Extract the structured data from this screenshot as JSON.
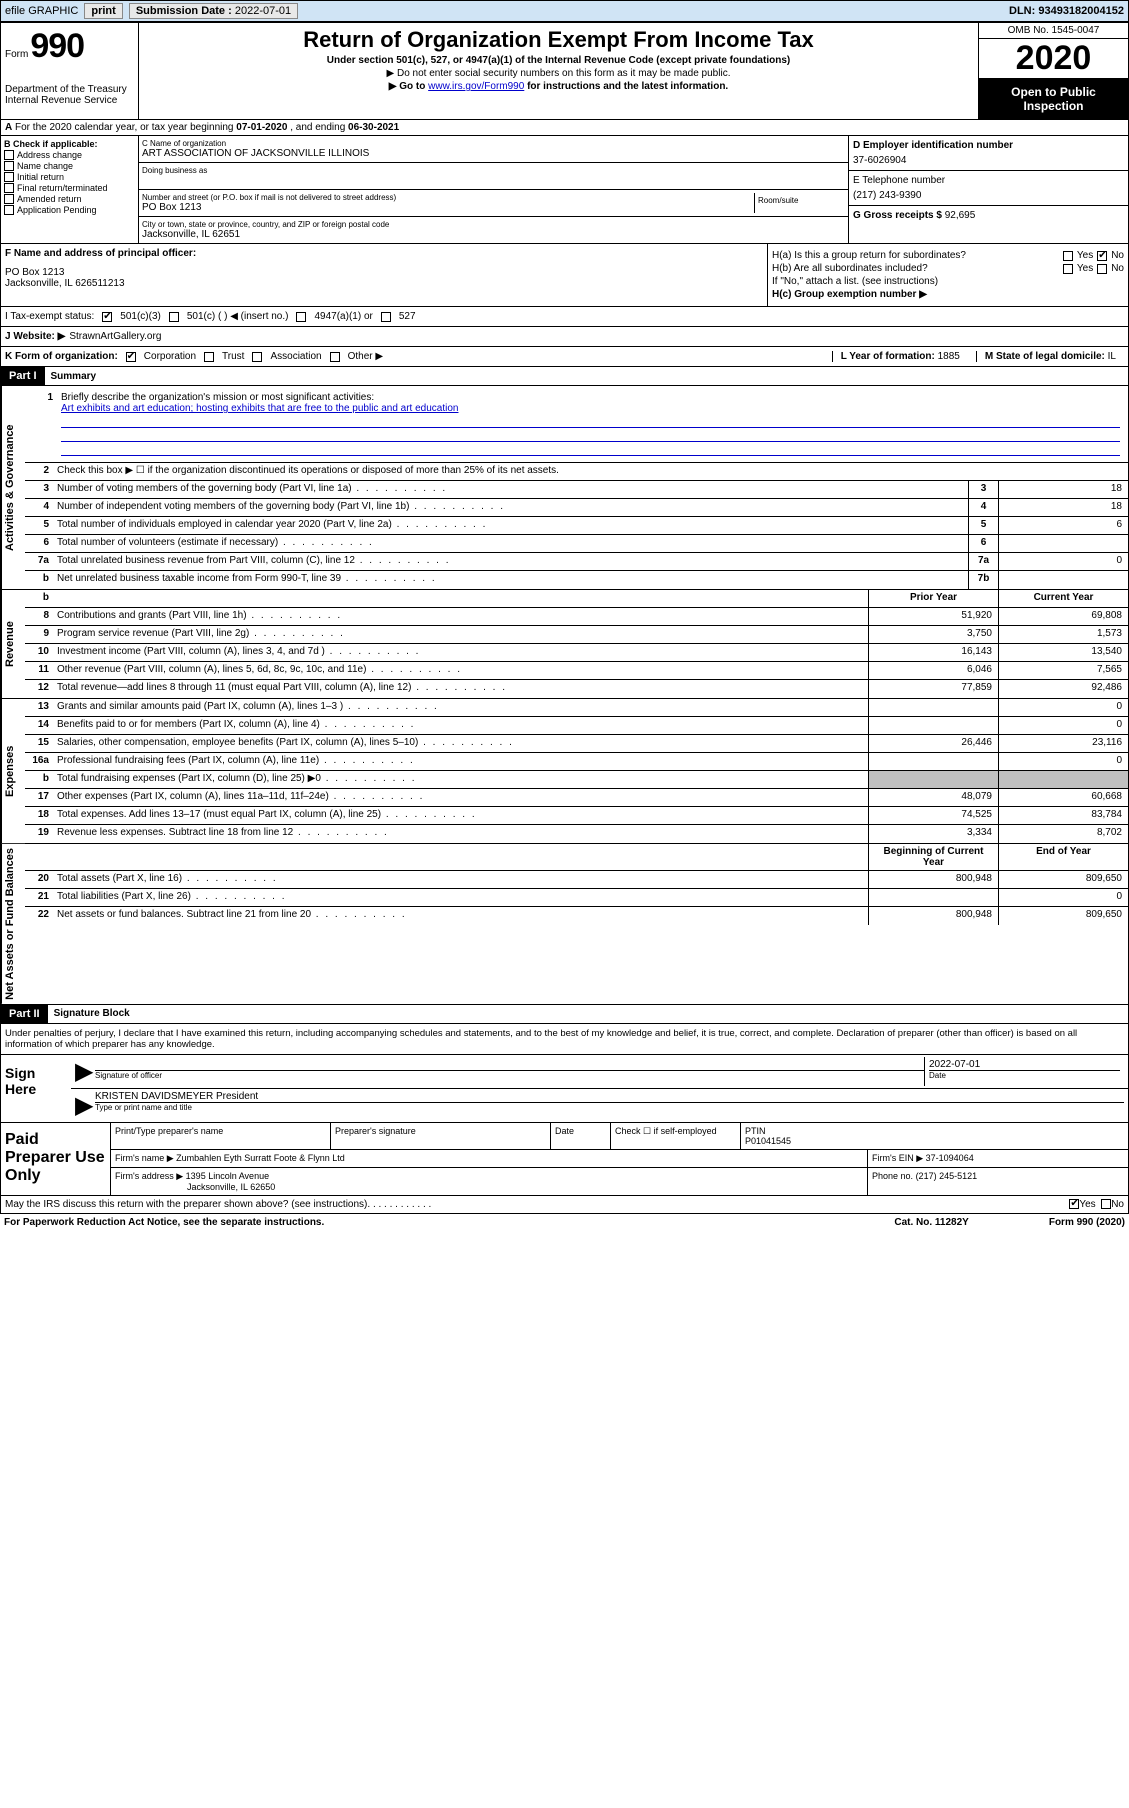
{
  "topbar": {
    "efile": "efile GRAPHIC",
    "print": "print",
    "subdate_label": "Submission Date :",
    "subdate": "2022-07-01",
    "dln": "DLN: 93493182004152"
  },
  "header": {
    "form_word": "Form",
    "form_num": "990",
    "dept": "Department of the Treasury",
    "irs": "Internal Revenue Service",
    "title": "Return of Organization Exempt From Income Tax",
    "sub1": "Under section 501(c), 527, or 4947(a)(1) of the Internal Revenue Code (except private foundations)",
    "sub2": "▶ Do not enter social security numbers on this form as it may be made public.",
    "sub3a": "▶ Go to ",
    "sub3link": "www.irs.gov/Form990",
    "sub3b": " for instructions and the latest information.",
    "omb": "OMB No. 1545-0047",
    "year": "2020",
    "open": "Open to Public Inspection"
  },
  "row_a": {
    "prefix": "A",
    "text": "For the 2020 calendar year, or tax year beginning ",
    "begin": "07-01-2020",
    "mid": " , and ending ",
    "end": "06-30-2021"
  },
  "col_b": {
    "header": "B Check if applicable:",
    "items": [
      "Address change",
      "Name change",
      "Initial return",
      "Final return/terminated",
      "Amended return",
      "Application Pending"
    ]
  },
  "col_c": {
    "name_label": "C Name of organization",
    "name": "ART ASSOCIATION OF JACKSONVILLE ILLINOIS",
    "dba_label": "Doing business as",
    "addr_label": "Number and street (or P.O. box if mail is not delivered to street address)",
    "addr": "PO Box 1213",
    "room_label": "Room/suite",
    "city_label": "City or town, state or province, country, and ZIP or foreign postal code",
    "city": "Jacksonville, IL  62651"
  },
  "col_de": {
    "d_label": "D Employer identification number",
    "d_val": "37-6026904",
    "e_label": "E Telephone number",
    "e_val": "(217) 243-9390",
    "g_label": "G Gross receipts $",
    "g_val": "92,695"
  },
  "row_f": {
    "label": "F  Name and address of principal officer:",
    "line1": "PO Box 1213",
    "line2": "Jacksonville, IL  626511213"
  },
  "row_h": {
    "ha": "H(a)  Is this a group return for subordinates?",
    "hb": "H(b)  Are all subordinates included?",
    "hb_note": "If \"No,\" attach a list. (see instructions)",
    "hc": "H(c)  Group exemption number ▶",
    "yes": "Yes",
    "no": "No"
  },
  "row_i": {
    "label": "I  Tax-exempt status:",
    "c3": "501(c)(3)",
    "c": "501(c) (  ) ◀ (insert no.)",
    "a1": "4947(a)(1) or",
    "s527": "527"
  },
  "row_j": {
    "label": "J  Website: ▶",
    "val": "StrawnArtGallery.org"
  },
  "row_k": {
    "label": "K Form of organization:",
    "corp": "Corporation",
    "trust": "Trust",
    "assoc": "Association",
    "other": "Other ▶",
    "l_label": "L Year of formation:",
    "l_val": "1885",
    "m_label": "M State of legal domicile:",
    "m_val": "IL"
  },
  "parts": {
    "p1": "Part I",
    "p1_title": "Summary",
    "p2": "Part II",
    "p2_title": "Signature Block"
  },
  "summary": {
    "line1_label": "Briefly describe the organization's mission or most significant activities:",
    "line1_text": "Art exhibits and art education; hosting exhibits that are free to the public and art education",
    "line2": "Check this box ▶ ☐  if the organization discontinued its operations or disposed of more than 25% of its net assets.",
    "rows": [
      {
        "n": "3",
        "t": "Number of voting members of the governing body (Part VI, line 1a)",
        "box": "3",
        "v": "18"
      },
      {
        "n": "4",
        "t": "Number of independent voting members of the governing body (Part VI, line 1b)",
        "box": "4",
        "v": "18"
      },
      {
        "n": "5",
        "t": "Total number of individuals employed in calendar year 2020 (Part V, line 2a)",
        "box": "5",
        "v": "6"
      },
      {
        "n": "6",
        "t": "Total number of volunteers (estimate if necessary)",
        "box": "6",
        "v": ""
      },
      {
        "n": "7a",
        "t": "Total unrelated business revenue from Part VIII, column (C), line 12",
        "box": "7a",
        "v": "0"
      },
      {
        "n": "b",
        "t": "Net unrelated business taxable income from Form 990-T, line 39",
        "box": "7b",
        "v": ""
      }
    ],
    "col_hdr_prior": "Prior Year",
    "col_hdr_current": "Current Year",
    "revenue": [
      {
        "n": "8",
        "t": "Contributions and grants (Part VIII, line 1h)",
        "p": "51,920",
        "c": "69,808"
      },
      {
        "n": "9",
        "t": "Program service revenue (Part VIII, line 2g)",
        "p": "3,750",
        "c": "1,573"
      },
      {
        "n": "10",
        "t": "Investment income (Part VIII, column (A), lines 3, 4, and 7d )",
        "p": "16,143",
        "c": "13,540"
      },
      {
        "n": "11",
        "t": "Other revenue (Part VIII, column (A), lines 5, 6d, 8c, 9c, 10c, and 11e)",
        "p": "6,046",
        "c": "7,565"
      },
      {
        "n": "12",
        "t": "Total revenue—add lines 8 through 11 (must equal Part VIII, column (A), line 12)",
        "p": "77,859",
        "c": "92,486"
      }
    ],
    "expenses": [
      {
        "n": "13",
        "t": "Grants and similar amounts paid (Part IX, column (A), lines 1–3 )",
        "p": "",
        "c": "0"
      },
      {
        "n": "14",
        "t": "Benefits paid to or for members (Part IX, column (A), line 4)",
        "p": "",
        "c": "0"
      },
      {
        "n": "15",
        "t": "Salaries, other compensation, employee benefits (Part IX, column (A), lines 5–10)",
        "p": "26,446",
        "c": "23,116"
      },
      {
        "n": "16a",
        "t": "Professional fundraising fees (Part IX, column (A), line 11e)",
        "p": "",
        "c": "0"
      },
      {
        "n": "b",
        "t": "Total fundraising expenses (Part IX, column (D), line 25) ▶0",
        "p": "SHADE",
        "c": "SHADE"
      },
      {
        "n": "17",
        "t": "Other expenses (Part IX, column (A), lines 11a–11d, 11f–24e)",
        "p": "48,079",
        "c": "60,668"
      },
      {
        "n": "18",
        "t": "Total expenses. Add lines 13–17 (must equal Part IX, column (A), line 25)",
        "p": "74,525",
        "c": "83,784"
      },
      {
        "n": "19",
        "t": "Revenue less expenses. Subtract line 18 from line 12",
        "p": "3,334",
        "c": "8,702"
      }
    ],
    "col_hdr_begin": "Beginning of Current Year",
    "col_hdr_end": "End of Year",
    "assets": [
      {
        "n": "20",
        "t": "Total assets (Part X, line 16)",
        "p": "800,948",
        "c": "809,650"
      },
      {
        "n": "21",
        "t": "Total liabilities (Part X, line 26)",
        "p": "",
        "c": "0"
      },
      {
        "n": "22",
        "t": "Net assets or fund balances. Subtract line 21 from line 20",
        "p": "800,948",
        "c": "809,650"
      }
    ],
    "vtabs": {
      "gov": "Activities & Governance",
      "rev": "Revenue",
      "exp": "Expenses",
      "net": "Net Assets or Fund Balances"
    }
  },
  "sig": {
    "disclaimer": "Under penalties of perjury, I declare that I have examined this return, including accompanying schedules and statements, and to the best of my knowledge and belief, it is true, correct, and complete. Declaration of preparer (other than officer) is based on all information of which preparer has any knowledge.",
    "sign_here": "Sign Here",
    "sig_officer": "Signature of officer",
    "date_label": "Date",
    "date_val": "2022-07-01",
    "name": "KRISTEN DAVIDSMEYER  President",
    "name_label": "Type or print name and title",
    "paid": "Paid Preparer Use Only",
    "prep_name_label": "Print/Type preparer's name",
    "prep_sig_label": "Preparer's signature",
    "check_label": "Check ☐ if self-employed",
    "ptin_label": "PTIN",
    "ptin": "P01041545",
    "firm_name_label": "Firm's name   ▶",
    "firm_name": "Zumbahlen Eyth Surratt Foote & Flynn Ltd",
    "firm_ein_label": "Firm's EIN ▶",
    "firm_ein": "37-1094064",
    "firm_addr_label": "Firm's address ▶",
    "firm_addr1": "1395 Lincoln Avenue",
    "firm_addr2": "Jacksonville, IL  62650",
    "phone_label": "Phone no.",
    "phone": "(217) 245-5121",
    "discuss": "May the IRS discuss this return with the preparer shown above? (see instructions)",
    "yes": "Yes",
    "no": "No"
  },
  "footer": {
    "pra": "For Paperwork Reduction Act Notice, see the separate instructions.",
    "cat": "Cat. No. 11282Y",
    "form": "Form 990 (2020)"
  }
}
